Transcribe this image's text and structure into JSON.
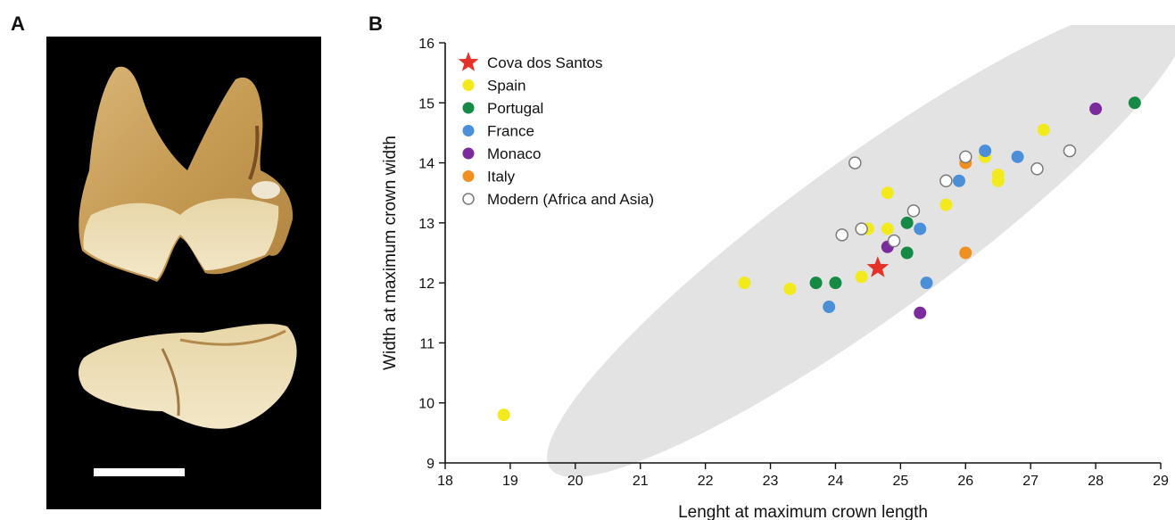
{
  "panels": {
    "a_label": "A",
    "b_label": "B"
  },
  "photo": {
    "description_icon": "tooth-photo",
    "scale_bar": true
  },
  "chart_data": {
    "type": "scatter",
    "xlabel": "Lenght at maximum crown length",
    "ylabel": "Width at maximum crown width",
    "xlim": [
      18,
      29
    ],
    "ylim": [
      9,
      16
    ],
    "xticks": [
      18,
      19,
      20,
      21,
      22,
      23,
      24,
      25,
      26,
      27,
      28,
      29
    ],
    "yticks": [
      9,
      10,
      11,
      12,
      13,
      14,
      15,
      16
    ],
    "grid": false,
    "legend_position": "top-left",
    "confidence_ellipse": {
      "color": "#e3e3e3"
    },
    "series": [
      {
        "name": "Cova dos Santos",
        "marker": "star",
        "color": "#e53228",
        "points": [
          [
            24.65,
            12.25
          ]
        ]
      },
      {
        "name": "Spain",
        "marker": "circle",
        "color": "#f2ea1d",
        "points": [
          [
            18.9,
            9.8
          ],
          [
            22.6,
            12.0
          ],
          [
            23.3,
            11.9
          ],
          [
            24.4,
            12.1
          ],
          [
            24.5,
            12.9
          ],
          [
            24.8,
            13.5
          ],
          [
            24.8,
            12.9
          ],
          [
            25.7,
            13.3
          ],
          [
            26.3,
            14.1
          ],
          [
            26.5,
            13.8
          ],
          [
            26.5,
            13.7
          ],
          [
            27.2,
            14.55
          ]
        ]
      },
      {
        "name": "Portugal",
        "marker": "circle",
        "color": "#158a45",
        "points": [
          [
            23.7,
            12.0
          ],
          [
            24.0,
            12.0
          ],
          [
            25.1,
            13.0
          ],
          [
            25.1,
            12.5
          ],
          [
            28.6,
            15.0
          ]
        ]
      },
      {
        "name": "France",
        "marker": "circle",
        "color": "#4a8fd8",
        "points": [
          [
            23.9,
            11.6
          ],
          [
            25.3,
            12.9
          ],
          [
            25.4,
            12.0
          ],
          [
            25.9,
            13.7
          ],
          [
            26.3,
            14.2
          ],
          [
            26.8,
            14.1
          ]
        ]
      },
      {
        "name": "Monaco",
        "marker": "circle",
        "color": "#7b2b9c",
        "points": [
          [
            24.8,
            12.6
          ],
          [
            25.3,
            11.5
          ],
          [
            28.0,
            14.9
          ]
        ]
      },
      {
        "name": "Italy",
        "marker": "circle",
        "color": "#f0901f",
        "points": [
          [
            26.0,
            14.0
          ],
          [
            26.0,
            12.5
          ]
        ]
      },
      {
        "name": "Modern (Africa and Asia)",
        "marker": "open-circle",
        "color": "#7a7a7a",
        "points": [
          [
            24.1,
            12.8
          ],
          [
            24.3,
            14.0
          ],
          [
            24.4,
            12.9
          ],
          [
            24.9,
            12.7
          ],
          [
            25.2,
            13.2
          ],
          [
            25.7,
            13.7
          ],
          [
            26.0,
            14.1
          ],
          [
            27.1,
            13.9
          ],
          [
            27.6,
            14.2
          ]
        ]
      }
    ]
  }
}
